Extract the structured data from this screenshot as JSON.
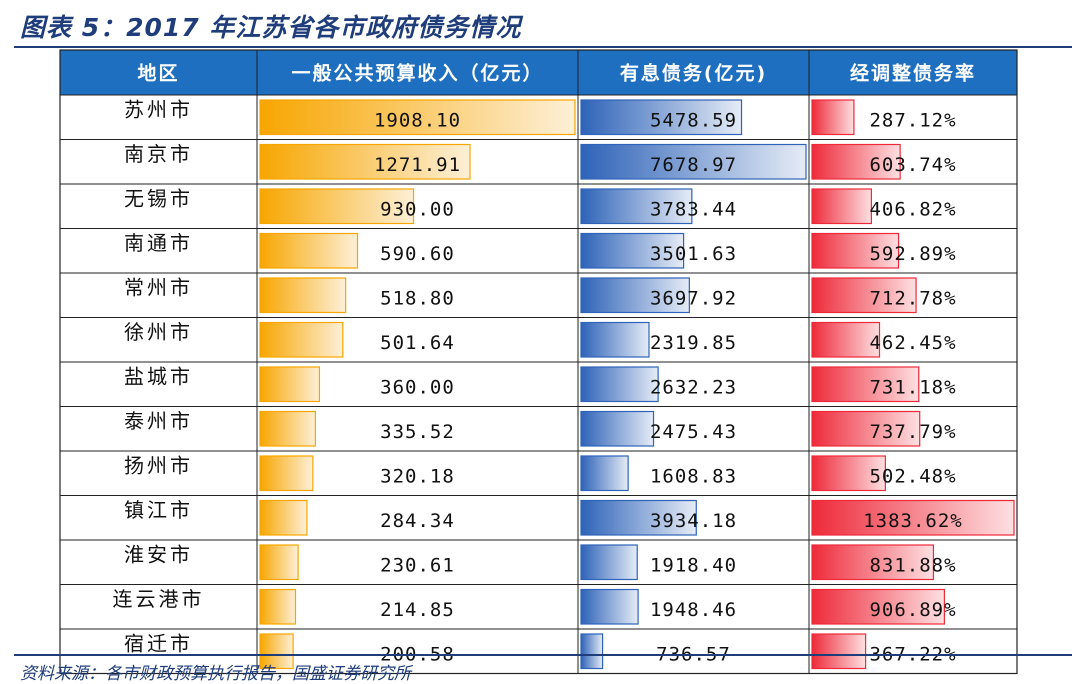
{
  "title": "图表 5：2017 年江苏省各市政府债务情况",
  "source": "资料来源：各市财政预算执行报告，国盛证券研究所",
  "colors": {
    "header_bg": "#1f6fc0",
    "title": "#1f3d7a",
    "revenue_bar": "#f7a600",
    "debt_bar": "#2e63b8",
    "ratio_bar": "#ee2a3a"
  },
  "chart_data": {
    "type": "table",
    "columns": [
      "地区",
      "一般公共预算收入（亿元）",
      "有息债务(亿元)",
      "经调整债务率"
    ],
    "rows": [
      {
        "region": "苏州市",
        "revenue": 1908.1,
        "revenue_label": "1908.10",
        "debt": 5478.59,
        "debt_label": "5478.59",
        "ratio": 287.12,
        "ratio_label": "287.12%"
      },
      {
        "region": "南京市",
        "revenue": 1271.91,
        "revenue_label": "1271.91",
        "debt": 7678.97,
        "debt_label": "7678.97",
        "ratio": 603.74,
        "ratio_label": "603.74%"
      },
      {
        "region": "无锡市",
        "revenue": 930.0,
        "revenue_label": "930.00",
        "debt": 3783.44,
        "debt_label": "3783.44",
        "ratio": 406.82,
        "ratio_label": "406.82%"
      },
      {
        "region": "南通市",
        "revenue": 590.6,
        "revenue_label": "590.60",
        "debt": 3501.63,
        "debt_label": "3501.63",
        "ratio": 592.89,
        "ratio_label": "592.89%"
      },
      {
        "region": "常州市",
        "revenue": 518.8,
        "revenue_label": "518.80",
        "debt": 3697.92,
        "debt_label": "3697.92",
        "ratio": 712.78,
        "ratio_label": "712.78%"
      },
      {
        "region": "徐州市",
        "revenue": 501.64,
        "revenue_label": "501.64",
        "debt": 2319.85,
        "debt_label": "2319.85",
        "ratio": 462.45,
        "ratio_label": "462.45%"
      },
      {
        "region": "盐城市",
        "revenue": 360.0,
        "revenue_label": "360.00",
        "debt": 2632.23,
        "debt_label": "2632.23",
        "ratio": 731.18,
        "ratio_label": "731.18%"
      },
      {
        "region": "泰州市",
        "revenue": 335.52,
        "revenue_label": "335.52",
        "debt": 2475.43,
        "debt_label": "2475.43",
        "ratio": 737.79,
        "ratio_label": "737.79%"
      },
      {
        "region": "扬州市",
        "revenue": 320.18,
        "revenue_label": "320.18",
        "debt": 1608.83,
        "debt_label": "1608.83",
        "ratio": 502.48,
        "ratio_label": "502.48%"
      },
      {
        "region": "镇江市",
        "revenue": 284.34,
        "revenue_label": "284.34",
        "debt": 3934.18,
        "debt_label": "3934.18",
        "ratio": 1383.62,
        "ratio_label": "1383.62%"
      },
      {
        "region": "淮安市",
        "revenue": 230.61,
        "revenue_label": "230.61",
        "debt": 1918.4,
        "debt_label": "1918.40",
        "ratio": 831.88,
        "ratio_label": "831.88%"
      },
      {
        "region": "连云港市",
        "revenue": 214.85,
        "revenue_label": "214.85",
        "debt": 1948.46,
        "debt_label": "1948.46",
        "ratio": 906.89,
        "ratio_label": "906.89%"
      },
      {
        "region": "宿迁市",
        "revenue": 200.58,
        "revenue_label": "200.58",
        "debt": 736.57,
        "debt_label": "736.57",
        "ratio": 367.22,
        "ratio_label": "367.22%"
      }
    ]
  }
}
